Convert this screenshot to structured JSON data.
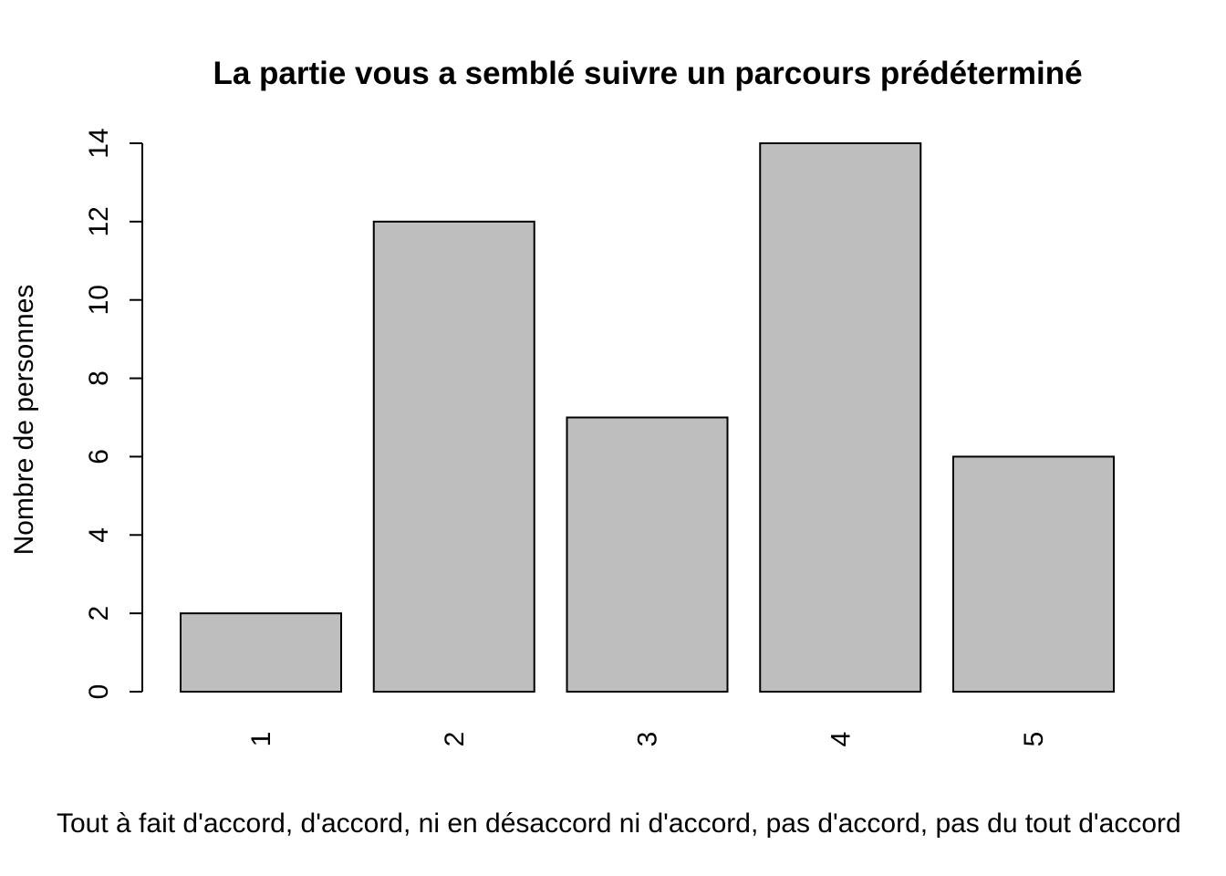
{
  "chart_data": {
    "type": "bar",
    "title": "La partie vous a semblé suivre un parcours prédéterminé",
    "xlabel": "Tout à fait d'accord, d'accord, ni en désaccord ni d'accord, pas d'accord, pas du tout d'accord",
    "ylabel": "Nombre de personnes",
    "categories": [
      "1",
      "2",
      "3",
      "4",
      "5"
    ],
    "values": [
      2,
      12,
      7,
      14,
      6
    ],
    "ylim": [
      0,
      14
    ],
    "yticks": [
      0,
      2,
      4,
      6,
      8,
      10,
      12,
      14
    ],
    "x_tick_rotation": "vertical",
    "grid": false,
    "legend": "none",
    "colors": {
      "bar_fill": "#bebebe",
      "bar_stroke": "#000000"
    }
  }
}
